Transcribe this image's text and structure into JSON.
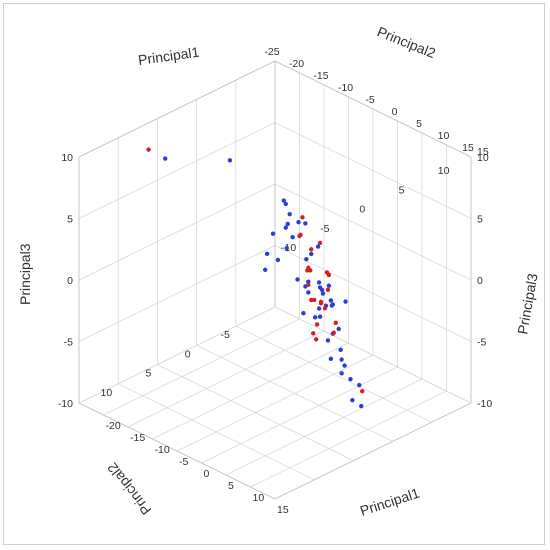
{
  "chart_data": {
    "type": "scatter3d",
    "title": "",
    "grid": true,
    "axes": {
      "principal1": {
        "label": "Principal1",
        "range": [
          -25,
          15
        ],
        "ticks": [
          -25,
          -20,
          -15,
          -10,
          -5,
          0,
          5,
          10,
          15
        ],
        "tick_labels_top": [
          "-25",
          "-20",
          "-15",
          "-10",
          "-5",
          "0",
          "5",
          "10",
          "15"
        ],
        "tick_labels_bottom": [
          "-20",
          "-15",
          "-10",
          "-5",
          "0",
          "5",
          "10",
          "15"
        ]
      },
      "principal2": {
        "label": "Principal2",
        "range": [
          -10,
          15
        ],
        "ticks": [
          -10,
          -5,
          0,
          5,
          10,
          15
        ],
        "tick_labels_top": [
          "15",
          "10",
          "5",
          "0",
          "-5",
          "-10"
        ],
        "tick_labels_bottom": [
          "10",
          "5",
          "0",
          "-5"
        ]
      },
      "principal3": {
        "label": "Principal3",
        "range": [
          -10,
          10
        ],
        "ticks": [
          -10,
          -5,
          0,
          5,
          10
        ],
        "tick_labels_left": [
          "10",
          "5",
          "0",
          "-5",
          "-10"
        ],
        "tick_labels_right": [
          "10",
          "5",
          "0",
          "-5",
          "-10"
        ]
      }
    },
    "series": [
      {
        "color": "#2b3fd6",
        "points": [
          [
            -21.0,
            6.5,
            8.0
          ],
          [
            -23.0,
            -3.0,
            4.5
          ],
          [
            -10.0,
            -2.0,
            3.8
          ],
          [
            -9.0,
            -3.0,
            2.2
          ],
          [
            -11.0,
            -1.0,
            1.5
          ],
          [
            -13.0,
            -4.0,
            -1.0
          ],
          [
            -14.0,
            -3.5,
            -2.0
          ],
          [
            -8.0,
            -4.0,
            -0.5
          ],
          [
            -6.0,
            -2.0,
            3.0
          ],
          [
            -7.0,
            -1.0,
            2.0
          ],
          [
            -5.0,
            -3.0,
            1.0
          ],
          [
            -6.0,
            -5.0,
            -3.0
          ],
          [
            -4.0,
            -4.0,
            -3.5
          ],
          [
            -8.0,
            -3.0,
            -5.0
          ],
          [
            -2.0,
            -3.0,
            -5.5
          ],
          [
            -3.0,
            -2.0,
            -4.0
          ],
          [
            -1.0,
            -4.0,
            -3.0
          ],
          [
            1.0,
            2.0,
            0.0
          ],
          [
            2.0,
            3.0,
            1.0
          ],
          [
            3.0,
            1.0,
            -1.0
          ],
          [
            4.0,
            2.0,
            0.5
          ],
          [
            0.0,
            0.0,
            0.0
          ],
          [
            -1.0,
            1.0,
            2.0
          ],
          [
            1.0,
            -1.0,
            -2.0
          ],
          [
            5.0,
            3.0,
            1.5
          ],
          [
            6.0,
            2.0,
            0.0
          ],
          [
            7.0,
            4.0,
            2.0
          ],
          [
            8.0,
            5.0,
            1.0
          ],
          [
            9.0,
            7.0,
            4.0
          ],
          [
            10.0,
            9.0,
            5.0
          ],
          [
            4.0,
            0.0,
            -3.0
          ],
          [
            6.0,
            1.0,
            -4.0
          ],
          [
            3.0,
            -1.0,
            -6.0
          ],
          [
            2.0,
            -2.0,
            -7.0
          ],
          [
            5.0,
            -2.0,
            -8.0
          ],
          [
            7.0,
            -1.0,
            -9.0
          ],
          [
            8.0,
            1.0,
            -6.0
          ],
          [
            10.0,
            2.0,
            -7.0
          ],
          [
            11.0,
            4.0,
            -4.0
          ],
          [
            12.0,
            6.0,
            -2.0
          ],
          [
            13.0,
            7.0,
            0.0
          ],
          [
            12.0,
            8.0,
            2.0
          ],
          [
            -2.0,
            3.0,
            5.0
          ],
          [
            0.0,
            4.0,
            6.0
          ],
          [
            -4.0,
            2.0,
            6.5
          ],
          [
            2.0,
            5.0,
            7.5
          ],
          [
            -1.0,
            6.0,
            4.0
          ],
          [
            -3.0,
            5.0,
            2.0
          ]
        ]
      },
      {
        "color": "#d62020",
        "points": [
          [
            -22.0,
            8.0,
            9.0
          ],
          [
            -5.0,
            -1.0,
            4.0
          ],
          [
            -4.0,
            0.0,
            3.0
          ],
          [
            -3.0,
            -2.0,
            2.0
          ],
          [
            0.0,
            1.0,
            3.0
          ],
          [
            1.0,
            2.0,
            2.0
          ],
          [
            2.0,
            0.0,
            1.0
          ],
          [
            3.0,
            3.0,
            2.5
          ],
          [
            4.0,
            4.0,
            3.0
          ],
          [
            5.0,
            2.0,
            1.0
          ],
          [
            6.0,
            3.0,
            0.0
          ],
          [
            7.0,
            5.0,
            1.5
          ],
          [
            8.0,
            6.0,
            2.0
          ],
          [
            6.0,
            4.0,
            -1.0
          ],
          [
            5.0,
            1.0,
            -2.0
          ],
          [
            3.0,
            0.0,
            -3.5
          ],
          [
            9.0,
            6.0,
            -1.0
          ],
          [
            10.0,
            7.0,
            0.0
          ],
          [
            -7.0,
            -3.0,
            -2.5
          ],
          [
            -6.0,
            -4.0,
            -4.0
          ],
          [
            4.0,
            -3.0,
            -9.0
          ],
          [
            1.0,
            3.0,
            5.0
          ],
          [
            2.0,
            1.0,
            -1.0
          ],
          [
            0.0,
            -1.0,
            0.5
          ]
        ]
      }
    ]
  }
}
